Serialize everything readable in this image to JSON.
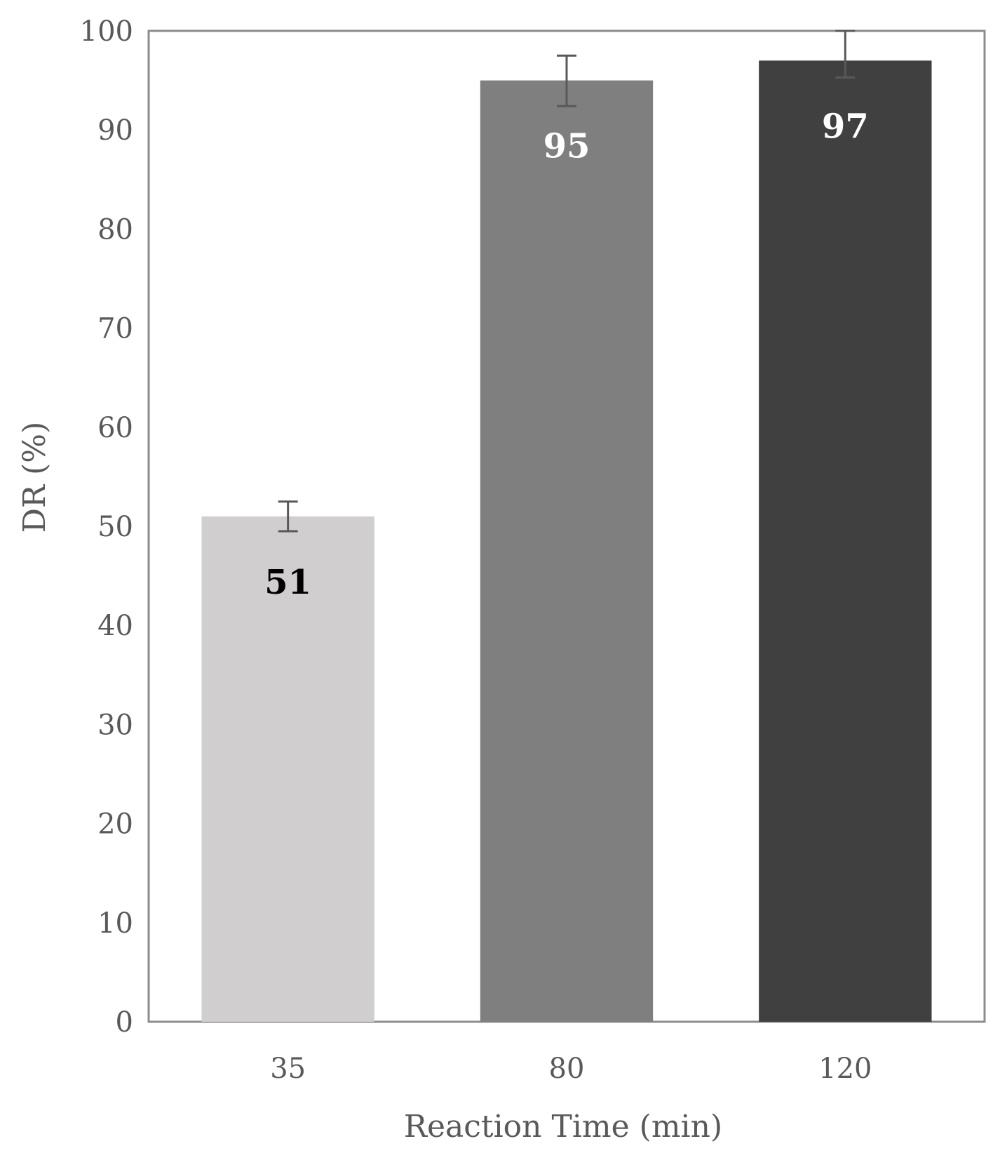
{
  "chart_data": {
    "type": "bar",
    "xlabel": "Reaction Time (min)",
    "ylabel": "DR (%)",
    "ylim": [
      0,
      100
    ],
    "yticks": [
      0,
      10,
      20,
      30,
      40,
      50,
      60,
      70,
      80,
      90,
      100
    ],
    "categories": [
      "35",
      "80",
      "120"
    ],
    "values": [
      51,
      95,
      97
    ],
    "data_labels": [
      "51",
      "95",
      "97"
    ],
    "error_bars": [
      {
        "low": 49.5,
        "high": 52.5
      },
      {
        "low": 92.4,
        "high": 97.5
      },
      {
        "low": 95.3,
        "high": 100
      }
    ],
    "bar_colors": [
      "#d0cecf",
      "#7f7f7f",
      "#404040"
    ],
    "label_colors": [
      "#000000",
      "#ffffff",
      "#ffffff"
    ],
    "grid": false
  }
}
